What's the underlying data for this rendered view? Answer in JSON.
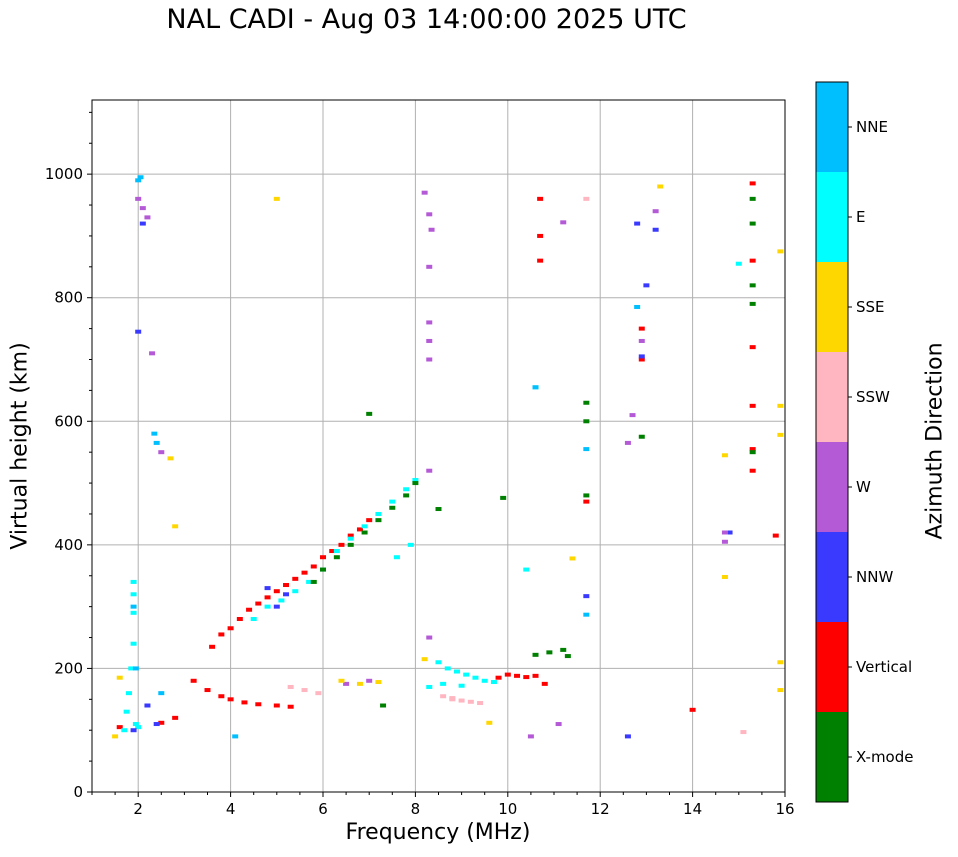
{
  "chart_data": {
    "type": "scatter",
    "title": "NAL CADI - Aug 03 14:00:00 2025 UTC",
    "xlabel": "Frequency (MHz)",
    "ylabel": "Virtual height (km)",
    "xlim": [
      1,
      16
    ],
    "ylim": [
      0,
      1120
    ],
    "xticks": [
      2,
      4,
      6,
      8,
      10,
      12,
      14,
      16
    ],
    "yticks": [
      0,
      200,
      400,
      600,
      800,
      1000
    ],
    "grid": true,
    "colorbar": {
      "label": "Azimuth Direction",
      "categories": [
        {
          "name": "X-mode",
          "color": "#008000"
        },
        {
          "name": "Vertical",
          "color": "#ff0000"
        },
        {
          "name": "NNW",
          "color": "#3a3aff"
        },
        {
          "name": "W",
          "color": "#b45ad6"
        },
        {
          "name": "SSW",
          "color": "#ffb6c1"
        },
        {
          "name": "SSE",
          "color": "#ffd700"
        },
        {
          "name": "E",
          "color": "#00ffff"
        },
        {
          "name": "NNE",
          "color": "#00bfff"
        }
      ]
    },
    "series": [
      {
        "name": "Vertical",
        "x": [
          3.6,
          3.8,
          4.0,
          4.2,
          4.4,
          4.6,
          4.8,
          5.0,
          5.2,
          5.4,
          5.6,
          5.8,
          6.0,
          6.2,
          6.4,
          6.6,
          6.8,
          7.0,
          3.2,
          3.5,
          3.8,
          4.0,
          4.3,
          4.6,
          5.0,
          5.3,
          9.8,
          10.0,
          10.2,
          10.4,
          10.6,
          10.8,
          10.7,
          10.7,
          10.7,
          15.3,
          15.3,
          15.3,
          15.3,
          15.3,
          15.3,
          12.9,
          12.9,
          1.6,
          2.5,
          2.8,
          14.0,
          11.7,
          15.8
        ],
        "y": [
          235,
          255,
          265,
          280,
          295,
          305,
          315,
          325,
          335,
          345,
          355,
          365,
          380,
          390,
          400,
          415,
          425,
          440,
          180,
          165,
          155,
          150,
          145,
          142,
          140,
          138,
          185,
          190,
          188,
          186,
          188,
          175,
          960,
          900,
          860,
          985,
          860,
          720,
          625,
          555,
          520,
          750,
          700,
          105,
          112,
          120,
          133,
          470,
          415
        ]
      },
      {
        "name": "E",
        "x": [
          1.7,
          1.75,
          1.8,
          1.85,
          1.9,
          1.9,
          1.9,
          1.9,
          1.95,
          2.0,
          4.5,
          4.8,
          5.1,
          5.4,
          5.7,
          6.0,
          6.3,
          6.6,
          6.9,
          7.2,
          7.5,
          7.8,
          8.0,
          8.5,
          8.7,
          8.9,
          9.1,
          9.3,
          9.5,
          9.7,
          8.3,
          8.6,
          9.0,
          15.0,
          10.4,
          10.6,
          7.6,
          7.9
        ],
        "y": [
          100,
          130,
          160,
          200,
          240,
          290,
          320,
          340,
          110,
          105,
          280,
          300,
          310,
          325,
          340,
          360,
          390,
          410,
          430,
          450,
          470,
          490,
          505,
          210,
          200,
          195,
          190,
          185,
          180,
          178,
          170,
          175,
          172,
          855,
          360,
          655,
          380,
          400
        ]
      },
      {
        "name": "NNE",
        "x": [
          1.9,
          1.95,
          2.0,
          2.05,
          2.35,
          2.4,
          2.5,
          4.1,
          12.8,
          11.7,
          11.7,
          10.6
        ],
        "y": [
          300,
          200,
          990,
          995,
          580,
          565,
          160,
          90,
          785,
          555,
          287,
          655
        ]
      },
      {
        "name": "X-mode",
        "x": [
          5.8,
          6.0,
          6.3,
          6.6,
          6.9,
          7.2,
          7.5,
          7.8,
          8.0,
          7.3,
          7.0,
          8.5,
          9.9,
          10.6,
          10.9,
          11.2,
          11.3,
          11.7,
          11.7,
          11.7,
          12.9,
          15.3,
          15.3,
          15.3,
          15.3,
          15.3
        ],
        "y": [
          340,
          360,
          380,
          400,
          420,
          440,
          460,
          480,
          500,
          140,
          612,
          458,
          476,
          222,
          226,
          230,
          220,
          630,
          600,
          480,
          575,
          960,
          920,
          820,
          790,
          550
        ]
      },
      {
        "name": "NNW",
        "x": [
          2.0,
          2.1,
          2.2,
          2.4,
          4.8,
          5.0,
          5.2,
          12.6,
          12.8,
          13.2,
          13.0,
          12.9,
          14.8,
          11.7,
          1.9
        ],
        "y": [
          745,
          920,
          140,
          110,
          330,
          300,
          320,
          90,
          920,
          910,
          820,
          705,
          420,
          317,
          100
        ]
      },
      {
        "name": "W",
        "x": [
          2.0,
          2.1,
          2.2,
          2.3,
          2.5,
          8.2,
          8.3,
          8.35,
          8.3,
          8.3,
          8.3,
          8.3,
          8.3,
          12.7,
          12.6,
          13.2,
          14.7,
          14.7,
          12.9,
          10.5,
          11.2,
          7.0,
          6.5,
          8.3,
          11.1
        ],
        "y": [
          960,
          945,
          930,
          710,
          550,
          970,
          935,
          910,
          850,
          760,
          730,
          700,
          520,
          610,
          565,
          940,
          420,
          405,
          730,
          90,
          922,
          180,
          175,
          250,
          110
        ]
      },
      {
        "name": "SSW",
        "x": [
          5.3,
          5.6,
          5.9,
          8.6,
          8.8,
          9.0,
          9.2,
          9.4,
          15.1,
          11.7,
          8.8
        ],
        "y": [
          170,
          165,
          160,
          155,
          150,
          148,
          146,
          144,
          97,
          960,
          152
        ]
      },
      {
        "name": "SSE",
        "x": [
          1.5,
          1.6,
          2.7,
          2.8,
          5.0,
          6.4,
          6.8,
          7.2,
          8.2,
          9.6,
          11.4,
          13.3,
          14.7,
          14.7,
          15.9,
          15.9,
          15.9,
          15.9,
          15.9
        ],
        "y": [
          90,
          185,
          540,
          430,
          960,
          180,
          175,
          178,
          215,
          112,
          378,
          980,
          545,
          348,
          875,
          625,
          578,
          210,
          165
        ]
      }
    ]
  }
}
